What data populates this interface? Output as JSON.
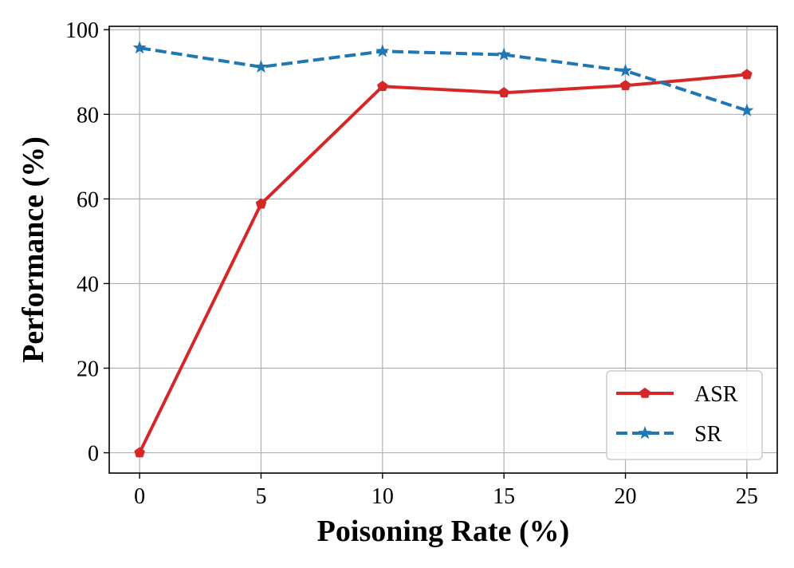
{
  "chart_data": {
    "type": "line",
    "title": "",
    "xlabel": "Poisoning Rate (%)",
    "ylabel": "Performance (%)",
    "x": [
      0,
      5,
      10,
      15,
      20,
      25
    ],
    "xticks": [
      "0",
      "5",
      "10",
      "15",
      "20",
      "25"
    ],
    "yticks": [
      "0",
      "20",
      "40",
      "60",
      "80",
      "100"
    ],
    "xlim": [
      -1.25,
      26.25
    ],
    "ylim": [
      -4.8,
      100.8
    ],
    "grid": true,
    "legend_position": "lower-right",
    "series": [
      {
        "name": "ASR",
        "values": [
          0.0,
          58.8,
          86.6,
          85.1,
          86.8,
          89.4
        ],
        "color": "#d62728",
        "line_style": "solid",
        "marker": "pentagon"
      },
      {
        "name": "SR",
        "values": [
          95.7,
          91.2,
          94.9,
          94.1,
          90.3,
          80.9
        ],
        "color": "#1f77b4",
        "line_style": "dashed",
        "marker": "star"
      }
    ]
  }
}
